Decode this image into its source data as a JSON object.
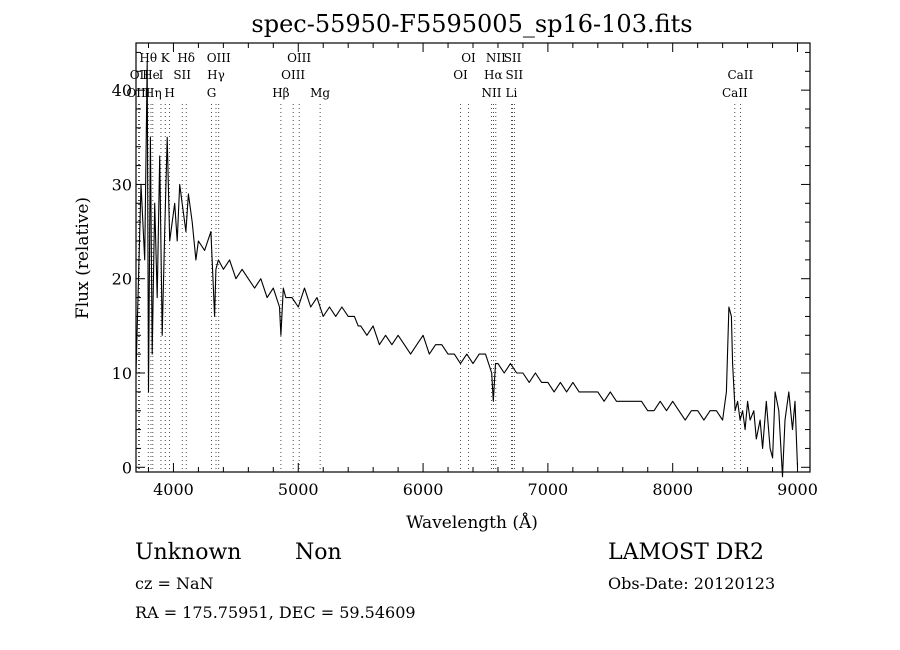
{
  "chart_data": {
    "type": "line",
    "title": "spec-55950-F5595005_sp16-103.fits",
    "xlabel": "Wavelength (Å)",
    "ylabel": "Flux (relative)",
    "xlim": [
      3700,
      9100
    ],
    "ylim": [
      -0.5,
      45
    ],
    "xticks": [
      4000,
      5000,
      6000,
      7000,
      8000,
      9000
    ],
    "yticks": [
      0,
      10,
      20,
      30,
      40
    ],
    "grid": false,
    "series": [
      {
        "x": [
          3700,
          3740,
          3770,
          3790,
          3800,
          3815,
          3830,
          3850,
          3870,
          3890,
          3910,
          3930,
          3950,
          3970,
          3990,
          4010,
          4030,
          4050,
          4080,
          4100,
          4120,
          4150,
          4180,
          4200,
          4250,
          4300,
          4330,
          4340,
          4360,
          4400,
          4450,
          4500,
          4550,
          4600,
          4650,
          4700,
          4750,
          4800,
          4850,
          4861,
          4880,
          4900,
          4950,
          5000,
          5050,
          5100,
          5150,
          5200,
          5250,
          5300,
          5350,
          5400,
          5450,
          5480,
          5500,
          5550,
          5600,
          5650,
          5700,
          5750,
          5800,
          5850,
          5900,
          5950,
          6000,
          6050,
          6100,
          6150,
          6200,
          6250,
          6300,
          6350,
          6400,
          6450,
          6500,
          6550,
          6563,
          6580,
          6600,
          6650,
          6700,
          6750,
          6800,
          6850,
          6900,
          6950,
          7000,
          7050,
          7100,
          7150,
          7200,
          7250,
          7300,
          7350,
          7400,
          7450,
          7500,
          7550,
          7600,
          7650,
          7700,
          7750,
          7800,
          7850,
          7900,
          7950,
          8000,
          8050,
          8100,
          8150,
          8200,
          8250,
          8300,
          8350,
          8400,
          8430,
          8450,
          8470,
          8480,
          8500,
          8520,
          8540,
          8560,
          8580,
          8600,
          8620,
          8650,
          8670,
          8700,
          8720,
          8750,
          8780,
          8800,
          8820,
          8850,
          8880,
          8900,
          8930,
          8960,
          8980,
          9000
        ],
        "y": [
          10,
          30,
          22,
          43,
          8,
          35,
          12,
          28,
          18,
          33,
          14,
          25,
          35,
          24,
          26,
          28,
          24,
          30,
          27,
          25,
          29,
          26,
          22,
          24,
          23,
          25,
          16,
          21,
          22,
          21,
          22,
          20,
          21,
          20,
          19,
          20,
          18,
          19,
          17,
          14,
          19,
          18,
          18,
          17,
          19,
          17,
          18,
          16,
          17,
          16,
          17,
          16,
          16,
          15,
          15,
          14,
          15,
          13,
          14,
          13,
          14,
          13,
          12,
          13,
          14,
          12,
          13,
          13,
          12,
          12,
          11,
          12,
          11,
          12,
          12,
          10,
          7,
          11,
          11,
          10,
          11,
          10,
          10,
          9,
          10,
          9,
          9,
          8,
          9,
          8,
          9,
          8,
          8,
          8,
          8,
          7,
          8,
          7,
          7,
          7,
          7,
          7,
          6,
          6,
          7,
          6,
          7,
          6,
          5,
          6,
          6,
          5,
          6,
          6,
          5,
          8,
          17,
          16,
          11,
          6,
          7,
          5,
          6,
          4,
          7,
          5,
          6,
          3,
          5,
          2,
          7,
          2,
          1,
          8,
          6,
          -1,
          5,
          8,
          4,
          7,
          0
        ],
        "color": "#000000"
      }
    ],
    "spectral_lines": [
      {
        "label": "OII",
        "x": 3727,
        "row": 1
      },
      {
        "label": "Hθ",
        "x": 3798,
        "row": 0
      },
      {
        "label": "OIII",
        "x": 3720,
        "row": 2
      },
      {
        "label": "He",
        "x": 3820,
        "row": 1
      },
      {
        "label": "Hη",
        "x": 3835,
        "row": 2
      },
      {
        "label": "K",
        "x": 3934,
        "row": 0
      },
      {
        "label": "H",
        "x": 3969,
        "row": 2
      },
      {
        "label": "I",
        "x": 3900,
        "row": 1
      },
      {
        "label": "SII",
        "x": 4070,
        "row": 1
      },
      {
        "label": "Hδ",
        "x": 4102,
        "row": 0
      },
      {
        "label": "OIII",
        "x": 4363,
        "row": 0
      },
      {
        "label": "Hγ",
        "x": 4341,
        "row": 1
      },
      {
        "label": "G",
        "x": 4305,
        "row": 2
      },
      {
        "label": "Hβ",
        "x": 4861,
        "row": 2
      },
      {
        "label": "OIII",
        "x": 4959,
        "row": 1
      },
      {
        "label": "OIII",
        "x": 5007,
        "row": 0
      },
      {
        "label": "Mg",
        "x": 5175,
        "row": 2
      },
      {
        "label": "OI",
        "x": 6300,
        "row": 1
      },
      {
        "label": "OI",
        "x": 6364,
        "row": 0
      },
      {
        "label": "NII",
        "x": 6548,
        "row": 2
      },
      {
        "label": "Hα",
        "x": 6563,
        "row": 1
      },
      {
        "label": "NII",
        "x": 6583,
        "row": 0
      },
      {
        "label": "SII",
        "x": 6717,
        "row": 0
      },
      {
        "label": "SII",
        "x": 6731,
        "row": 1
      },
      {
        "label": "Li",
        "x": 6708,
        "row": 2
      },
      {
        "label": "CaII",
        "x": 8542,
        "row": 1
      },
      {
        "label": "CaII",
        "x": 8498,
        "row": 2
      }
    ]
  },
  "footer": {
    "classification": "Unknown",
    "subclass": "Non",
    "survey": "LAMOST DR2",
    "cz": "cz = NaN",
    "obs_date": "Obs-Date: 20120123",
    "coords": "RA = 175.75951, DEC =  59.54609"
  }
}
